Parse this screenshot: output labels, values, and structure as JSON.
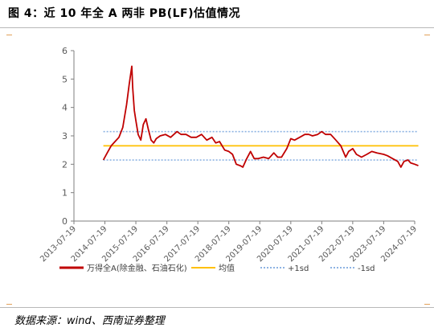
{
  "figure": {
    "title": "图 4：近 10 年全 A 两非 PB(LF)估值情况",
    "source": "数据来源：wind、西南证券整理"
  },
  "chart_data": {
    "type": "line",
    "title": "",
    "xlabel": "",
    "ylabel": "",
    "ylim": [
      0,
      6
    ],
    "yticks": [
      "0",
      "1",
      "2",
      "3",
      "4",
      "5",
      "6"
    ],
    "xticks": [
      "2013-07-19",
      "2014-07-19",
      "2015-07-19",
      "2016-07-19",
      "2017-07-19",
      "2018-07-19",
      "2019-07-19",
      "2020-07-19",
      "2021-07-19",
      "2022-07-19",
      "2023-07-19",
      "2024-07-19"
    ],
    "grid": false,
    "legend_position": "bottom",
    "colors": {
      "series": "#c00000",
      "mean": "#ffc000",
      "band": "#8eb4e3"
    },
    "series": [
      {
        "name": "万得全A(除金融、石油石化)",
        "x": [
          "2014-07-01",
          "2014-08-15",
          "2014-10-01",
          "2014-11-15",
          "2015-01-01",
          "2015-02-15",
          "2015-04-01",
          "2015-05-01",
          "2015-06-01",
          "2015-06-12",
          "2015-07-01",
          "2015-07-19",
          "2015-08-15",
          "2015-09-15",
          "2015-10-15",
          "2015-11-15",
          "2015-12-15",
          "2016-01-15",
          "2016-02-15",
          "2016-03-15",
          "2016-05-01",
          "2016-07-01",
          "2016-09-01",
          "2016-11-15",
          "2017-01-01",
          "2017-03-01",
          "2017-05-01",
          "2017-07-01",
          "2017-09-01",
          "2017-11-01",
          "2018-01-01",
          "2018-02-15",
          "2018-04-01",
          "2018-06-01",
          "2018-07-19",
          "2018-09-01",
          "2018-10-15",
          "2018-12-01",
          "2019-01-01",
          "2019-02-15",
          "2019-04-01",
          "2019-05-15",
          "2019-07-01",
          "2019-09-01",
          "2019-11-01",
          "2020-01-01",
          "2020-02-15",
          "2020-04-01",
          "2020-06-01",
          "2020-07-19",
          "2020-09-01",
          "2020-11-01",
          "2021-01-01",
          "2021-02-15",
          "2021-04-01",
          "2021-06-01",
          "2021-07-19",
          "2021-09-01",
          "2021-11-01",
          "2022-01-01",
          "2022-03-01",
          "2022-04-27",
          "2022-06-01",
          "2022-07-19",
          "2022-09-01",
          "2022-10-31",
          "2023-01-01",
          "2023-03-01",
          "2023-05-01",
          "2023-07-19",
          "2023-09-01",
          "2023-11-01",
          "2024-01-01",
          "2024-02-07",
          "2024-03-15",
          "2024-05-01",
          "2024-06-01",
          "2024-07-19",
          "2024-08-31"
        ],
        "y": [
          2.15,
          2.4,
          2.65,
          2.8,
          2.95,
          3.3,
          4.1,
          4.8,
          5.45,
          4.7,
          3.9,
          3.55,
          3.05,
          2.85,
          3.4,
          3.6,
          3.2,
          2.85,
          2.75,
          2.9,
          3.0,
          3.05,
          2.95,
          3.15,
          3.05,
          3.05,
          2.95,
          2.95,
          3.05,
          2.85,
          2.95,
          2.75,
          2.8,
          2.5,
          2.45,
          2.35,
          2.0,
          1.95,
          1.9,
          2.2,
          2.45,
          2.2,
          2.2,
          2.25,
          2.2,
          2.4,
          2.25,
          2.25,
          2.55,
          2.9,
          2.85,
          2.95,
          3.05,
          3.05,
          3.0,
          3.05,
          3.15,
          3.05,
          3.05,
          2.85,
          2.65,
          2.25,
          2.45,
          2.55,
          2.35,
          2.25,
          2.35,
          2.45,
          2.4,
          2.35,
          2.3,
          2.2,
          2.1,
          1.9,
          2.1,
          2.15,
          2.05,
          2.0,
          1.95
        ]
      },
      {
        "name": "均值",
        "value": 2.65
      },
      {
        "name": "+1sd",
        "value": 3.15
      },
      {
        "name": "-1sd",
        "value": 2.15
      }
    ]
  }
}
